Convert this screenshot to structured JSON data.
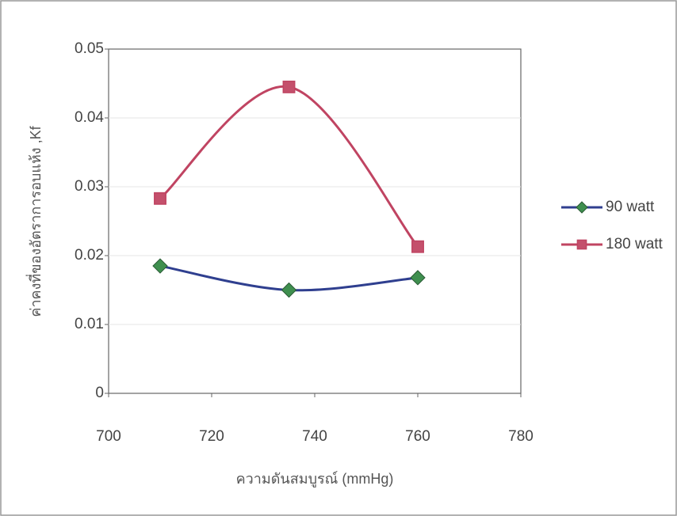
{
  "chart_data": {
    "type": "line",
    "x_label": "ความดันสมบูรณ์ (mmHg)",
    "y_label": "ค่าคงที่ของอัตราการอบแห้ง ,Kf",
    "x": [
      710,
      735,
      760
    ],
    "series": [
      {
        "name": "90 watt",
        "color": "#2f3f8f",
        "marker_color": "#3f8f4f",
        "marker": "diamond",
        "values": [
          0.0185,
          0.015,
          0.0168
        ]
      },
      {
        "name": "180 watt",
        "color": "#c04462",
        "marker_color": "#c4506c",
        "marker": "square",
        "values": [
          0.0283,
          0.0445,
          0.0213
        ]
      }
    ],
    "xlim": [
      700,
      780
    ],
    "xticks": [
      700,
      720,
      740,
      760,
      780
    ],
    "ylim": [
      0,
      0.05
    ],
    "yticks": [
      0,
      0.01,
      0.02,
      0.03,
      0.04,
      0.05
    ],
    "grid": true,
    "smooth": true,
    "legend": "right"
  }
}
